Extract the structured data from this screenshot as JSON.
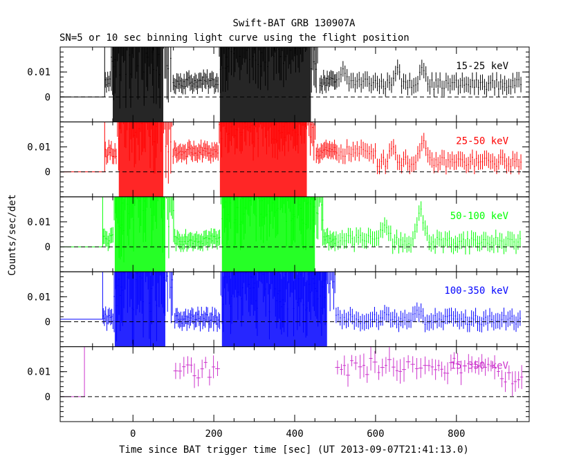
{
  "chart_data": {
    "type": "line",
    "title": "Swift-BAT GRB 130907A",
    "subtitle": "SN=5 or 10 sec binning light curve using the flight position",
    "xlabel": "Time since BAT trigger time [sec] (UT 2013-09-07T21:41:13.0)",
    "ylabel": "Counts/sec/det",
    "xlim": [
      -180,
      980
    ],
    "x_ticks": [
      0,
      200,
      400,
      600,
      800
    ],
    "y_ticks": [
      0,
      0.01
    ],
    "y_tick_labels": [
      "0",
      "0.01"
    ],
    "panels": [
      {
        "band": "15-25 keV",
        "color": "#000000",
        "ylim": [
          -0.01,
          0.02
        ],
        "pre_trigger_level": 0.0,
        "emission_start": -70,
        "episodes": [
          [
            -55,
            0.022,
            0.03,
            95
          ],
          [
            210,
            0.021,
            0.02,
            460
          ]
        ],
        "tail_peaks": [
          [
            520,
            0.011
          ],
          [
            650,
            0.012
          ],
          [
            715,
            0.014
          ]
        ],
        "quiet_level": 0.006,
        "tail_level": 0.005
      },
      {
        "band": "25-50 keV",
        "color": "#ff0000",
        "ylim": [
          -0.01,
          0.02
        ],
        "pre_trigger_level": 0.0,
        "emission_start": -70,
        "episodes": [
          [
            -40,
            0.021,
            0.028,
            95
          ],
          [
            210,
            0.019,
            0.015,
            450
          ]
        ],
        "tail_peaks": [
          [
            640,
            0.011
          ],
          [
            715,
            0.012
          ]
        ],
        "quiet_level": 0.008,
        "tail_level": 0.004
      },
      {
        "band": "50-100 keV",
        "color": "#00ff00",
        "ylim": [
          -0.01,
          0.02
        ],
        "pre_trigger_level": 0.0,
        "emission_start": -75,
        "episodes": [
          [
            -50,
            0.02,
            0.028,
            100
          ],
          [
            215,
            0.02,
            0.022,
            470
          ]
        ],
        "tail_peaks": [
          [
            620,
            0.01
          ],
          [
            710,
            0.014
          ]
        ],
        "quiet_level": 0.003,
        "tail_level": 0.002
      },
      {
        "band": "100-350 keV",
        "color": "#0000ff",
        "ylim": [
          -0.01,
          0.02
        ],
        "pre_trigger_level": 0.001,
        "emission_start": -75,
        "episodes": [
          [
            -50,
            0.02,
            0.032,
            100
          ],
          [
            215,
            0.016,
            0.024,
            500
          ]
        ],
        "tail_peaks": [
          [
            620,
            0.004
          ],
          [
            700,
            0.005
          ]
        ],
        "quiet_level": 0.001,
        "tail_level": 0.0007
      },
      {
        "band": "15-350 keV",
        "color": "#cc33cc",
        "ylim": [
          -0.01,
          0.02
        ],
        "pre_trigger_level": 0.0,
        "emission_start": -120,
        "segments": [
          [
            100,
            210,
            0.011
          ],
          [
            500,
            960,
            0.012
          ]
        ]
      }
    ]
  }
}
